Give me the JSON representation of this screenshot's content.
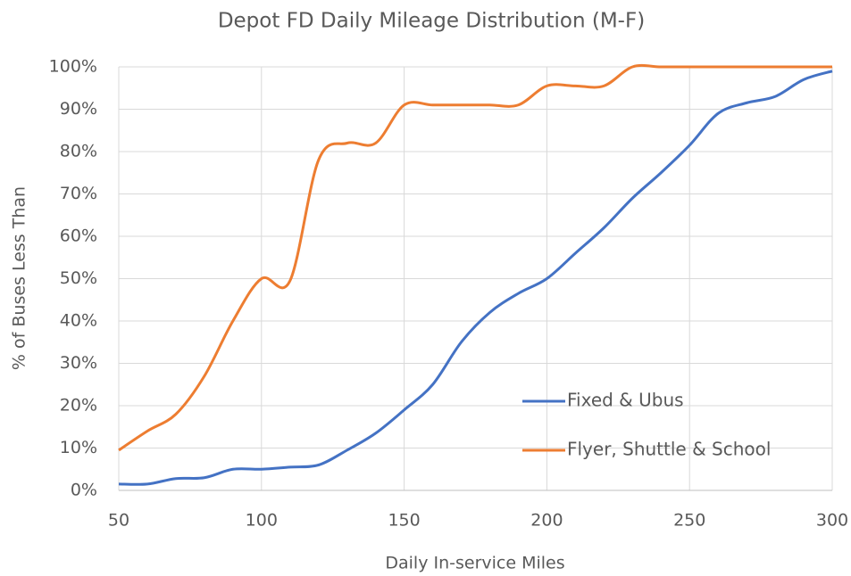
{
  "chart_data": {
    "type": "line",
    "title": "Depot FD Daily Mileage Distribution (M-F)",
    "x_label": "Daily In-service Miles",
    "y_label": "% of Buses Less Than",
    "x": [
      50,
      60,
      70,
      80,
      90,
      100,
      110,
      120,
      130,
      140,
      150,
      160,
      170,
      180,
      190,
      200,
      210,
      220,
      230,
      240,
      250,
      260,
      270,
      280,
      290,
      300
    ],
    "series": [
      {
        "name": "Fixed & Ubus",
        "color": "#4472c4",
        "values": [
          1.5,
          1.5,
          2.8,
          3,
          5,
          5,
          5.5,
          6,
          9.5,
          13.5,
          19,
          25,
          35,
          42,
          46.5,
          50,
          56,
          62,
          69,
          75,
          81.5,
          89,
          91.5,
          93,
          97,
          99
        ]
      },
      {
        "name": "Flyer, Shuttle & School",
        "color": "#ed7d31",
        "values": [
          9.5,
          14,
          18,
          27,
          40,
          50,
          49.5,
          78,
          82,
          82,
          91,
          91,
          91,
          91,
          91,
          95.5,
          95.5,
          95.5,
          100,
          100,
          100,
          100,
          100,
          100,
          100,
          100
        ]
      }
    ],
    "xlim": [
      50,
      300
    ],
    "xticks": [
      50,
      100,
      150,
      200,
      250,
      300
    ],
    "ylim": [
      0,
      100
    ],
    "yticks": [
      {
        "value": 0,
        "label": "0%"
      },
      {
        "value": 10,
        "label": "10%"
      },
      {
        "value": 20,
        "label": "20%"
      },
      {
        "value": 30,
        "label": "30%"
      },
      {
        "value": 40,
        "label": "40%"
      },
      {
        "value": 50,
        "label": "50%"
      },
      {
        "value": 60,
        "label": "60%"
      },
      {
        "value": 70,
        "label": "70%"
      },
      {
        "value": 80,
        "label": "80%"
      },
      {
        "value": 90,
        "label": "90%"
      },
      {
        "value": 100,
        "label": "100%"
      }
    ],
    "grid": true,
    "legend": "lower right"
  }
}
